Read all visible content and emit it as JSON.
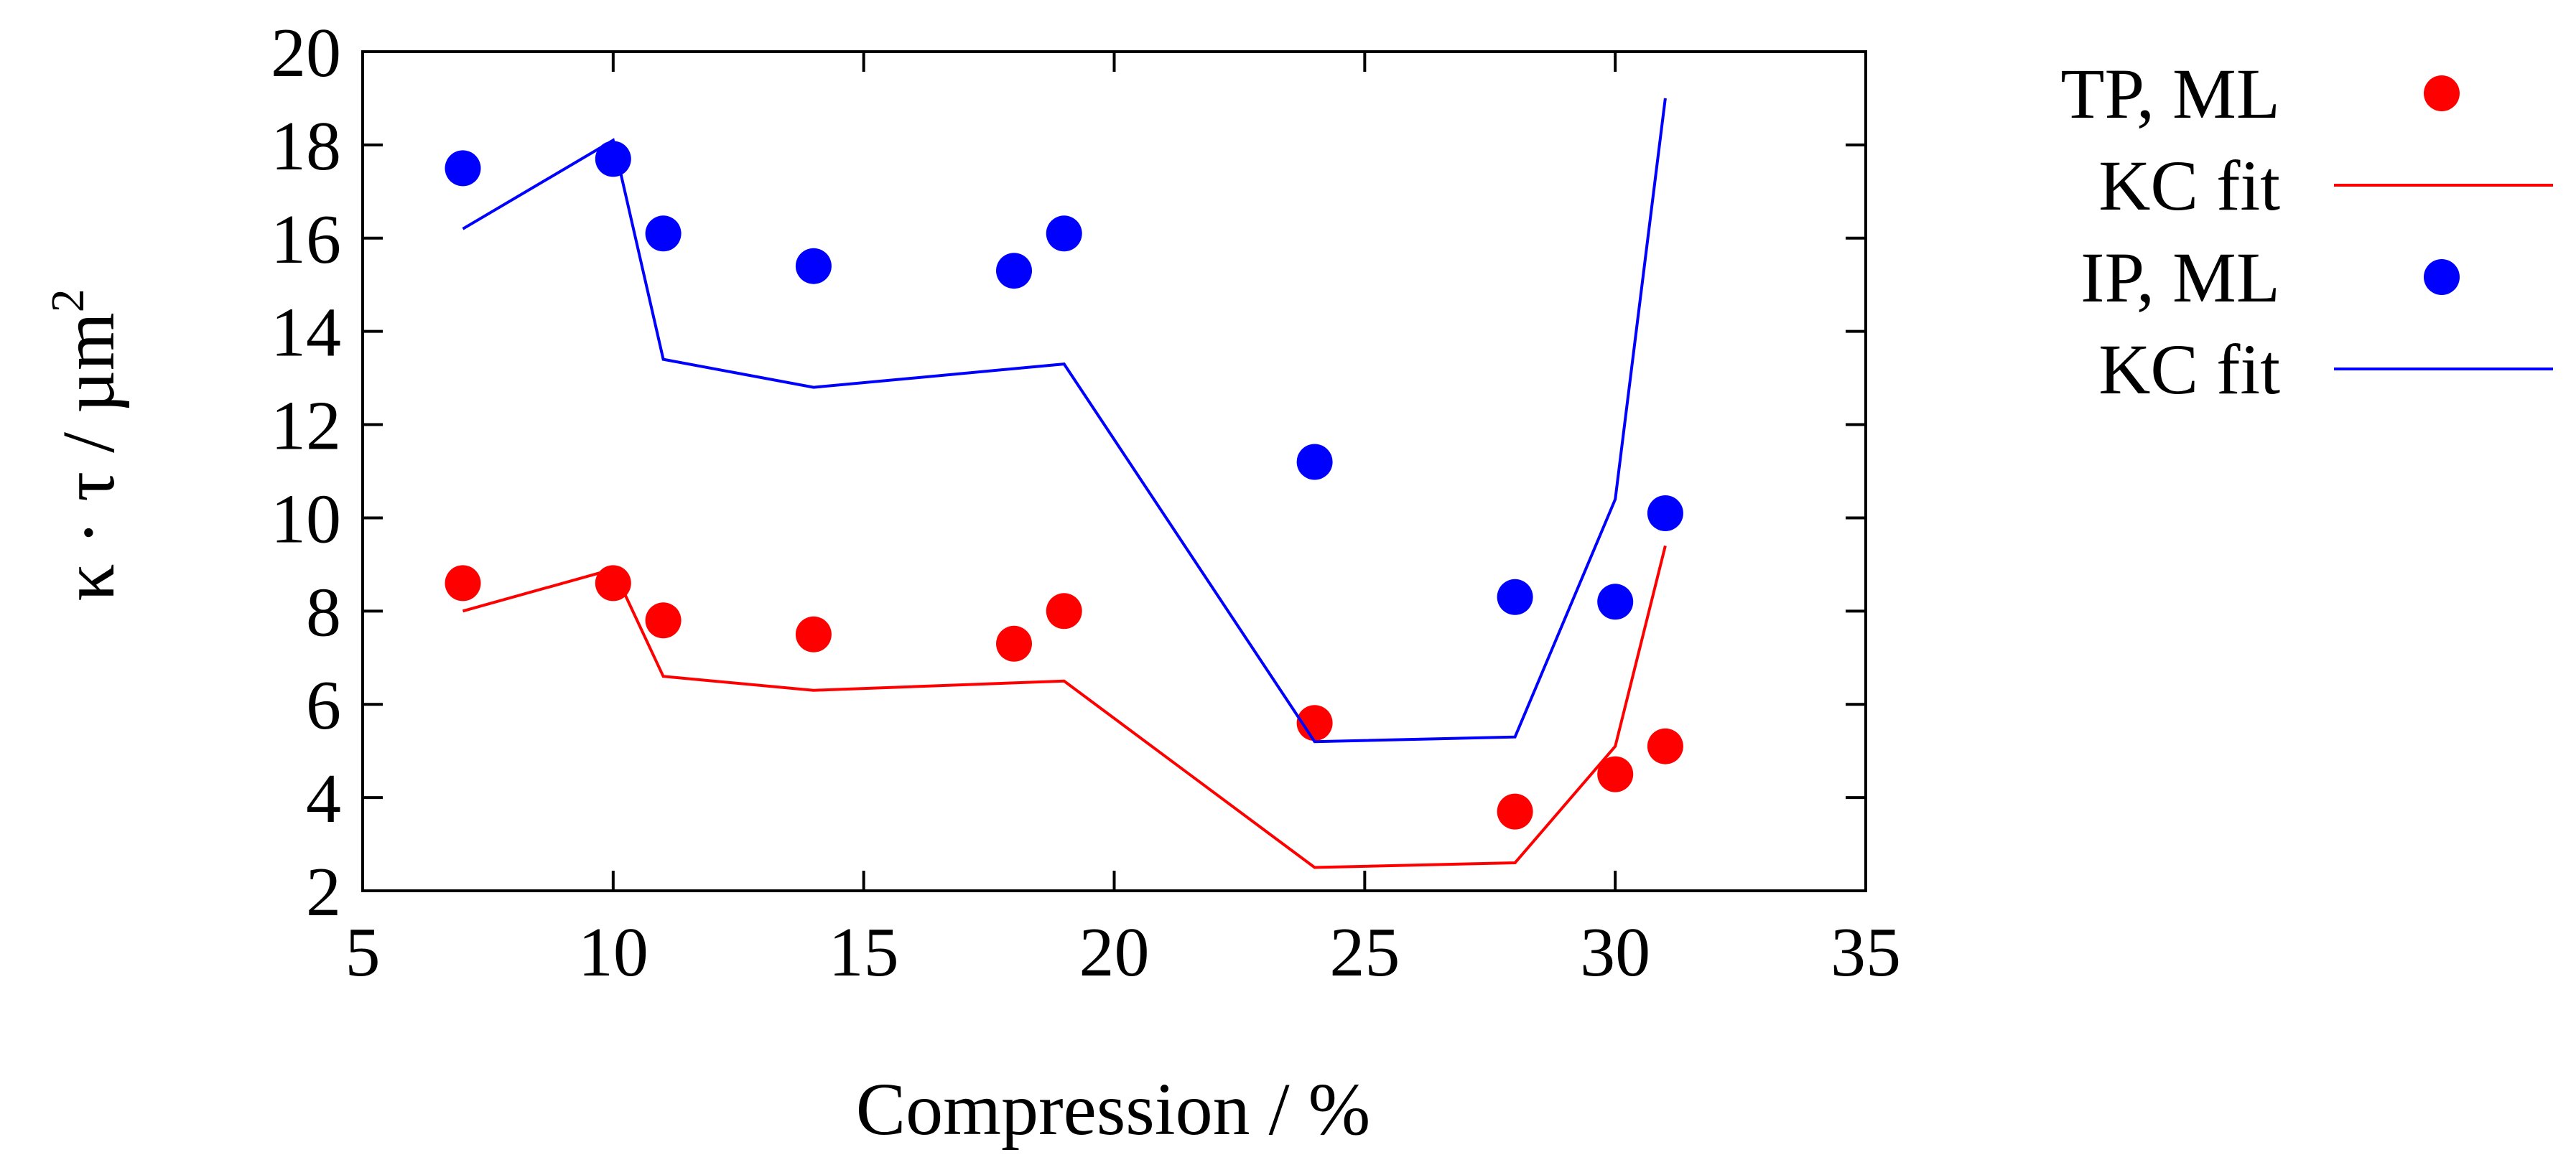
{
  "chart_data": {
    "type": "scatter",
    "title": "",
    "xlabel": "Compression  / %",
    "ylabel": {
      "main": "κ · τ / µm",
      "superscript": "2"
    },
    "xlim": [
      5,
      35
    ],
    "ylim": [
      2,
      20
    ],
    "x_ticks": [
      5,
      10,
      15,
      20,
      25,
      30,
      35
    ],
    "y_ticks": [
      2,
      4,
      6,
      8,
      10,
      12,
      14,
      16,
      18,
      20
    ],
    "grid": false,
    "legend_position": "right-outside",
    "series": [
      {
        "name": "TP, ML",
        "kind": "points",
        "color": "#ff0000",
        "x": [
          7,
          10,
          11,
          14,
          18,
          19,
          24,
          28,
          30,
          31
        ],
        "y": [
          8.6,
          8.6,
          7.8,
          7.5,
          7.3,
          8.0,
          5.6,
          3.7,
          4.5,
          5.1
        ]
      },
      {
        "name": "KC fit",
        "kind": "line",
        "color": "#ff0000",
        "x": [
          7,
          10,
          11,
          14,
          19,
          24,
          28,
          30,
          31
        ],
        "y": [
          8.0,
          8.9,
          6.6,
          6.3,
          6.5,
          2.5,
          2.6,
          5.1,
          9.4
        ]
      },
      {
        "name": "IP, ML",
        "kind": "points",
        "color": "#0000ff",
        "x": [
          7,
          10,
          11,
          14,
          18,
          19,
          24,
          28,
          30,
          31
        ],
        "y": [
          17.5,
          17.7,
          16.1,
          15.4,
          15.3,
          16.1,
          11.2,
          8.3,
          8.2,
          10.1
        ]
      },
      {
        "name": "KC fit",
        "kind": "line",
        "color": "#0000ff",
        "x": [
          7,
          10,
          11,
          14,
          19,
          24,
          28,
          30,
          31
        ],
        "y": [
          16.2,
          18.1,
          13.4,
          12.8,
          13.3,
          5.2,
          5.3,
          10.4,
          19.0
        ]
      }
    ]
  }
}
